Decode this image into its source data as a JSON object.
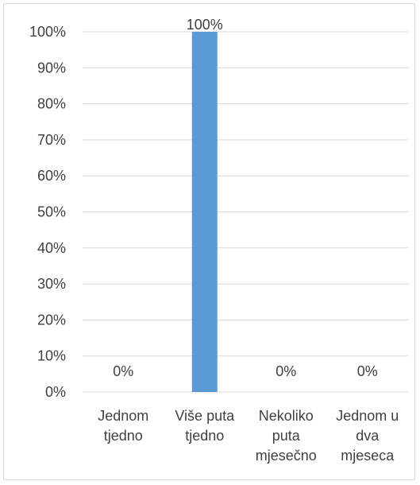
{
  "chart_data": {
    "type": "bar",
    "categories": [
      [
        "Jednom",
        "tjedno"
      ],
      [
        "Više puta",
        "tjedno"
      ],
      [
        "Nekoliko",
        "puta",
        "mjesečno"
      ],
      [
        "Jednom u",
        "dva",
        "mjeseca"
      ]
    ],
    "values": [
      0,
      100,
      0,
      0
    ],
    "data_labels": [
      "0%",
      "100%",
      "0%",
      "0%"
    ],
    "title": "",
    "xlabel": "",
    "ylabel": "",
    "ylim": [
      0,
      100
    ],
    "y_ticks": [
      "0%",
      "10%",
      "20%",
      "30%",
      "40%",
      "50%",
      "60%",
      "70%",
      "80%",
      "90%",
      "100%"
    ],
    "grid": true,
    "legend": "none",
    "colors": {
      "bar": "#5b9bd5",
      "grid": "#d9d9d9",
      "text": "#404040"
    }
  }
}
